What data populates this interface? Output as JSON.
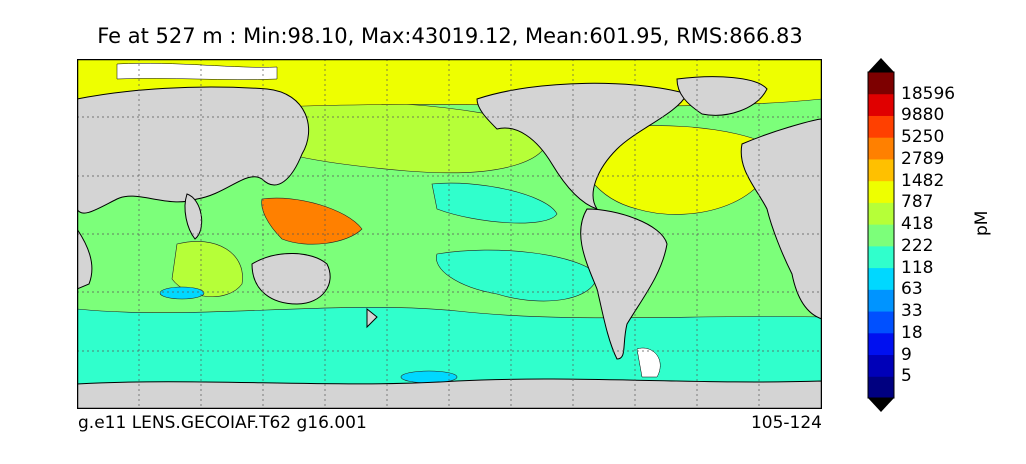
{
  "title": "Fe at 527 m : Min:98.10, Max:43019.12, Mean:601.95, RMS:866.83",
  "footer": {
    "case": "g.e11 LENS.GECOIAF.T62 g16.001",
    "years": "105-124"
  },
  "colorbar": {
    "unit": "pM",
    "levels": [
      "5",
      "9",
      "18",
      "33",
      "63",
      "118",
      "222",
      "418",
      "787",
      "1482",
      "2789",
      "5250",
      "9880",
      "18596"
    ],
    "colors": [
      "#000080",
      "#0000b8",
      "#0010f0",
      "#0050ff",
      "#0094ff",
      "#00d8ff",
      "#30ffcc",
      "#7cff7a",
      "#b6ff38",
      "#eeff00",
      "#ffc000",
      "#ff8000",
      "#ff4000",
      "#e00000",
      "#7d0000"
    ],
    "extend": "both"
  },
  "map": {
    "land_color": "#d4d4d4",
    "projection": "cylindrical",
    "gridlines": "dotted"
  }
}
